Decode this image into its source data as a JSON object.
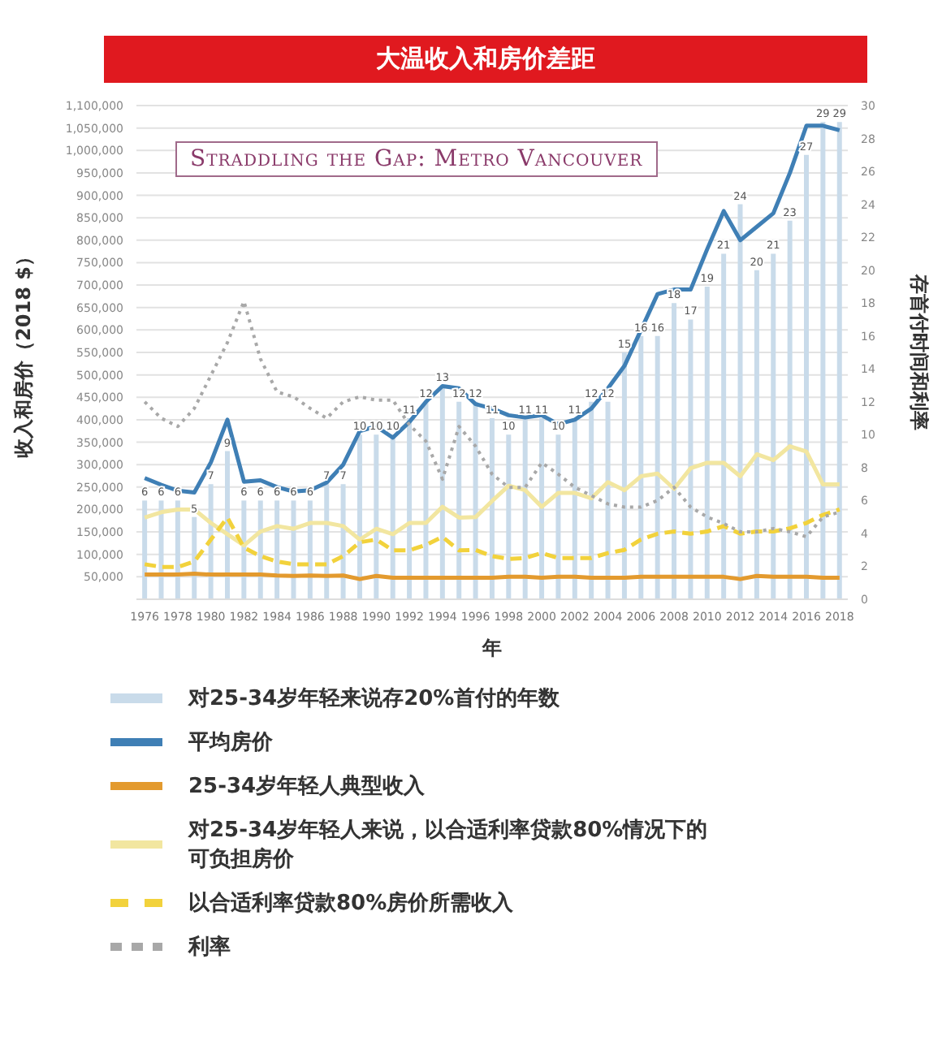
{
  "chart_data": {
    "type": "line",
    "title": "大温收入和房价差距",
    "subtitle": "Straddling the Gap: Metro Vancouver",
    "xlabel": "年",
    "ylabel": "收入和房价（2018 $）",
    "y2label": "存首付时间和利率",
    "categories": [
      "1976",
      null,
      "1978",
      null,
      "1980",
      null,
      "1982",
      null,
      "1984",
      null,
      "1986",
      null,
      "1988",
      null,
      "1990",
      null,
      "1992",
      null,
      "1994",
      null,
      "1996",
      null,
      "1998",
      null,
      "2000",
      null,
      "2002",
      null,
      "2004",
      null,
      "2006",
      null,
      "2008",
      null,
      "2010",
      null,
      "2012",
      null,
      "2014",
      null,
      "2016",
      null,
      "2018"
    ],
    "series": [
      {
        "name": "对25-34岁年轻来说存20%首付的年数",
        "type": "bar",
        "axis": "y2",
        "color": "#c9dbea",
        "values": [
          6,
          6,
          6,
          5,
          7,
          9,
          6,
          6,
          6,
          6,
          6,
          7,
          7,
          10,
          10,
          10,
          11,
          12,
          13,
          12,
          12,
          11,
          10,
          11,
          11,
          10,
          11,
          12,
          12,
          15,
          16,
          16,
          18,
          17,
          19,
          21,
          24,
          20,
          21,
          23,
          27,
          29,
          29
        ],
        "value_labels": [
          "6",
          "6",
          "6",
          "5",
          "7",
          "9",
          "6",
          "6",
          "6",
          "6",
          "6",
          "7",
          "7",
          "10",
          "10",
          "10",
          "11",
          "12",
          "13",
          "12",
          "12",
          "11",
          "10",
          "11",
          "11",
          "10",
          "11",
          "12",
          "12",
          "15",
          "16",
          "16",
          "18",
          "17",
          "19",
          "21",
          "24",
          "20",
          "21",
          "23",
          "27",
          "29",
          "29"
        ]
      },
      {
        "name": "平均房价",
        "color": "#3f7fb5",
        "values": [
          270000,
          255000,
          242000,
          238000,
          305000,
          400000,
          262000,
          265000,
          250000,
          240000,
          243000,
          260000,
          300000,
          375000,
          385000,
          360000,
          395000,
          440000,
          475000,
          470000,
          435000,
          425000,
          410000,
          405000,
          410000,
          390000,
          400000,
          425000,
          470000,
          520000,
          600000,
          680000,
          690000,
          690000,
          780000,
          865000,
          800000,
          830000,
          860000,
          950000,
          1055000,
          1055000,
          1045000
        ]
      },
      {
        "name": "25-34岁年轻人典型收入",
        "color": "#e39a2e",
        "values": [
          55000,
          55000,
          55000,
          57000,
          55000,
          55000,
          55000,
          55000,
          53000,
          52000,
          53000,
          52000,
          53000,
          45000,
          52000,
          48000,
          48000,
          48000,
          48000,
          48000,
          48000,
          48000,
          50000,
          50000,
          48000,
          50000,
          50000,
          48000,
          48000,
          48000,
          50000,
          50000,
          50000,
          50000,
          50000,
          50000,
          45000,
          52000,
          50000,
          50000,
          50000,
          48000,
          48000
        ]
      },
      {
        "name": "对25-34岁年轻人来说，以合适利率贷款80%情况下的可负担房价",
        "color": "#f2e6a0",
        "values": [
          182000,
          194000,
          200000,
          200000,
          170000,
          145000,
          120000,
          151000,
          163000,
          157000,
          170000,
          170000,
          163000,
          133000,
          157000,
          145000,
          170000,
          170000,
          206000,
          182000,
          183000,
          219000,
          253000,
          243000,
          206000,
          237000,
          237000,
          225000,
          261000,
          243000,
          274000,
          280000,
          246000,
          292000,
          304000,
          304000,
          274000,
          323000,
          310000,
          341000,
          329000,
          256000,
          256000
        ]
      },
      {
        "name": "以合适利率贷款80%房价所需收入",
        "line_style": "dashed",
        "color": "#f2d23c",
        "values": [
          78000,
          72000,
          72000,
          84000,
          133000,
          182000,
          115000,
          96000,
          84000,
          78000,
          78000,
          78000,
          96000,
          127000,
          133000,
          109000,
          109000,
          121000,
          139000,
          109000,
          110000,
          96000,
          90000,
          92000,
          103000,
          92000,
          92000,
          92000,
          103000,
          110000,
          133000,
          146000,
          151000,
          146000,
          151000,
          163000,
          146000,
          151000,
          151000,
          158000,
          170000,
          188000,
          200000
        ]
      },
      {
        "name": "利率",
        "axis": "y2",
        "line_style": "dotted",
        "color": "#a8a8a8",
        "values": [
          12.0,
          11.0,
          10.5,
          11.6,
          13.6,
          15.6,
          18.1,
          14.6,
          12.6,
          12.3,
          11.6,
          11.0,
          12.0,
          12.3,
          12.1,
          12.1,
          10.6,
          9.6,
          7.3,
          10.5,
          9.3,
          7.6,
          6.8,
          6.8,
          8.3,
          7.6,
          6.8,
          6.3,
          5.8,
          5.6,
          5.6,
          6.0,
          6.8,
          5.6,
          5.0,
          4.6,
          4.1,
          4.1,
          4.3,
          4.1,
          3.8,
          5.0,
          5.3
        ]
      }
    ],
    "ylim": [
      0,
      1100000
    ],
    "yticks": [
      {
        "value": 50000,
        "label": "50,000"
      },
      {
        "value": 100000,
        "label": "100,000"
      },
      {
        "value": 150000,
        "label": "150,000"
      },
      {
        "value": 200000,
        "label": "200,000"
      },
      {
        "value": 250000,
        "label": "250,000"
      },
      {
        "value": 300000,
        "label": "300,000"
      },
      {
        "value": 350000,
        "label": "350,000"
      },
      {
        "value": 400000,
        "label": "400,000"
      },
      {
        "value": 450000,
        "label": "450,000"
      },
      {
        "value": 500000,
        "label": "500,000"
      },
      {
        "value": 550000,
        "label": "550,000"
      },
      {
        "value": 600000,
        "label": "600,000"
      },
      {
        "value": 650000,
        "label": "650,000"
      },
      {
        "value": 700000,
        "label": "700,000"
      },
      {
        "value": 750000,
        "label": "750,000"
      },
      {
        "value": 800000,
        "label": "800,000"
      },
      {
        "value": 850000,
        "label": "850,000"
      },
      {
        "value": 900000,
        "label": "900,000"
      },
      {
        "value": 950000,
        "label": "950,000"
      },
      {
        "value": 1000000,
        "label": "1,000,000"
      },
      {
        "value": 1050000,
        "label": "1,050,000"
      },
      {
        "value": 1100000,
        "label": "1,100,000"
      }
    ],
    "y2lim": [
      0,
      30
    ],
    "y2ticks": [
      0,
      2,
      4,
      6,
      8,
      10,
      12,
      14,
      16,
      18,
      20,
      22,
      24,
      26,
      28,
      30
    ],
    "grid": "y",
    "legend": "bottom"
  }
}
